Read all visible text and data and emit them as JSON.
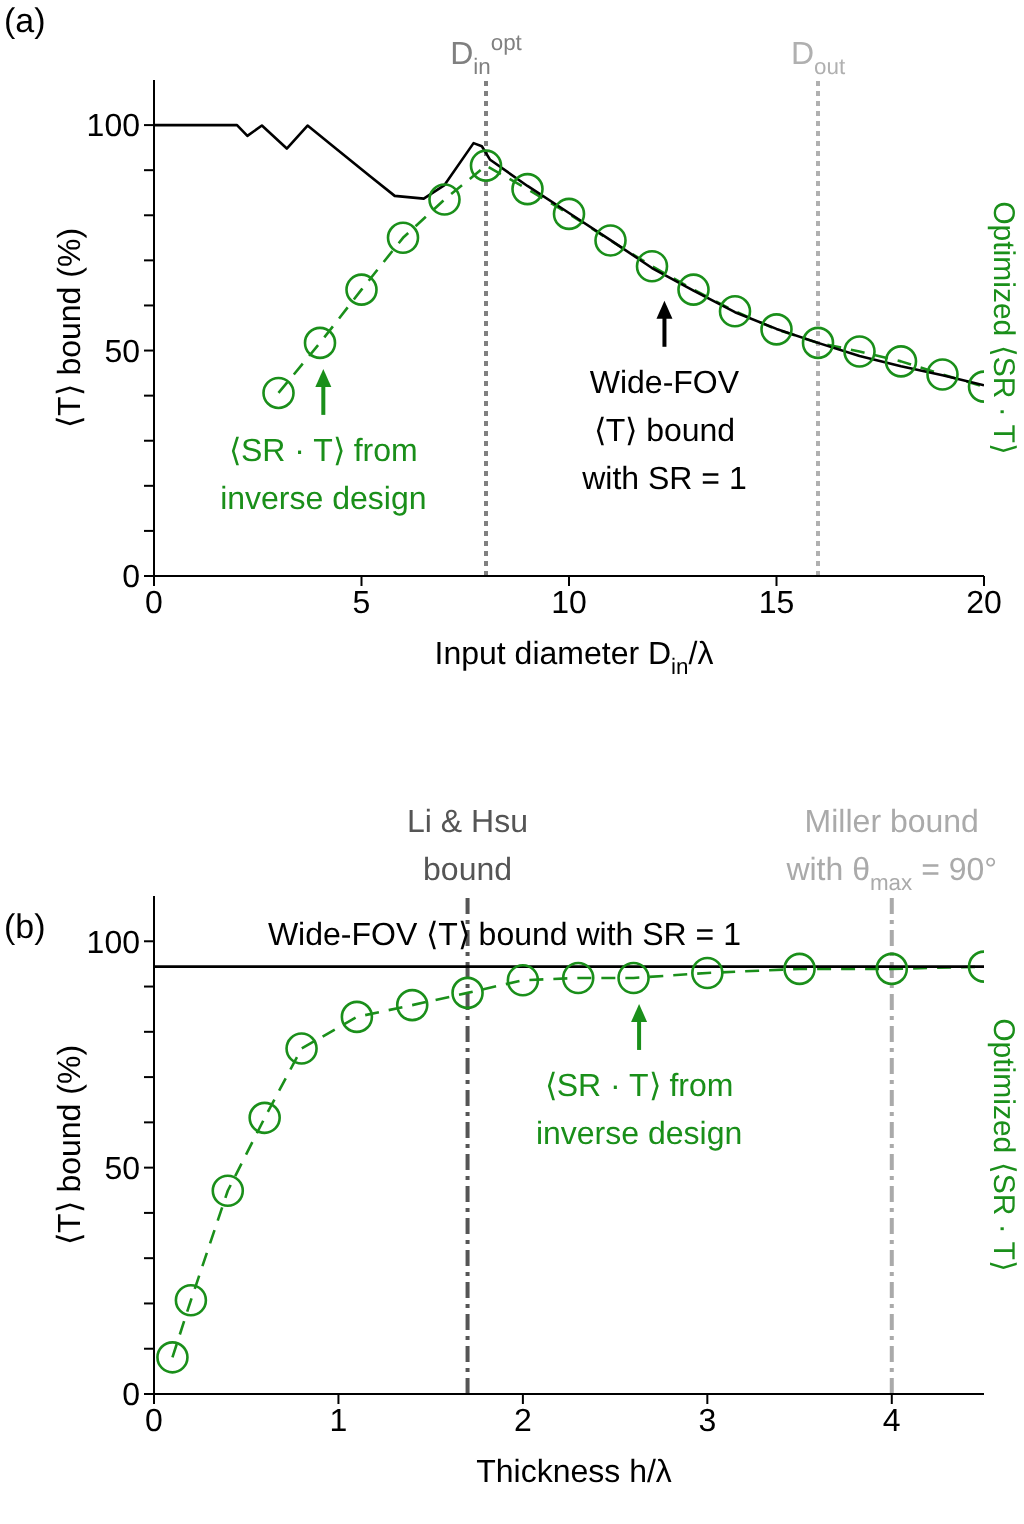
{
  "chart_data": [
    {
      "type": "line",
      "title": "(a)",
      "xlabel": "Input diameter D$_{in}$/λ",
      "ylabel": "⟨T⟩ bound (%)",
      "y2label": "Optimized ⟨SR · T⟩",
      "xlim": [
        0,
        20
      ],
      "xticks": [
        0,
        5,
        10,
        15,
        20
      ],
      "ylim": [
        0,
        110
      ],
      "yticks": [
        0,
        {
          "value": 10,
          "label": null
        },
        {
          "value": 20,
          "label": null
        },
        {
          "value": 30,
          "label": null
        },
        {
          "value": 40,
          "label": null
        },
        50,
        {
          "value": 60,
          "label": null
        },
        {
          "value": 70,
          "label": null
        },
        {
          "value": 80,
          "label": null
        },
        {
          "value": 90,
          "label": null
        },
        100
      ],
      "series": [
        {
          "type": "line",
          "color": "#1a8f1a",
          "marker": "circle",
          "line_style": "dashed",
          "x": [
            3,
            4,
            5,
            6,
            7,
            8,
            9,
            10,
            11,
            12,
            13,
            14,
            15,
            16,
            17,
            18,
            19,
            20
          ],
          "values": [
            40.6,
            51.7,
            63.5,
            75,
            83.5,
            91,
            85.8,
            80.3,
            74.4,
            68.7,
            63.5,
            58.7,
            54.7,
            51.7,
            49.8,
            47.6,
            44.7,
            42
          ]
        },
        {
          "type": "line",
          "color": "#000000",
          "marker": "none",
          "line_style": "solid",
          "x": [
            0,
            2,
            2.25,
            2.6,
            3.2,
            3.7,
            4.3,
            5.2,
            5.8,
            6.5,
            7,
            7.7,
            7.9,
            8.1,
            9,
            10,
            11,
            12,
            12.3,
            13,
            14,
            15,
            16,
            17,
            18,
            19,
            20
          ],
          "values": [
            100,
            100,
            97.6,
            99.9,
            94.8,
            99.9,
            95.4,
            88.7,
            84.3,
            83.7,
            86.7,
            96,
            95.3,
            92.3,
            86.5,
            80.5,
            74.5,
            68.3,
            66.8,
            63.3,
            58.5,
            54.8,
            51.7,
            48.8,
            46.5,
            44.5,
            42.3
          ]
        }
      ],
      "ref_lines": [
        {
          "axis": "x",
          "value": 8,
          "label": "D$_{in}$$^{opt}$",
          "color": "#808080",
          "line_style": "dotted"
        },
        {
          "axis": "x",
          "value": 16,
          "label": "D$_{out}$",
          "color": "#b0b0b0",
          "line_style": "dotted"
        }
      ],
      "annotations": [
        {
          "text": "⟨SR · T⟩ from\ninverse design",
          "x": 4.08,
          "y": 51.7
        },
        {
          "text": "Wide-FOV\n⟨T⟩ bound\nwith SR = 1",
          "x": 12.3,
          "y": 66.8
        }
      ]
    },
    {
      "type": "line",
      "title": "(b)",
      "xlabel": "Thickness h/λ",
      "ylabel": "⟨T⟩ bound (%)",
      "y2label": "Optimized ⟨SR · T⟩",
      "xlim": [
        0,
        4.5
      ],
      "xticks": [
        0,
        1,
        2,
        3,
        4
      ],
      "ylim": [
        0,
        110
      ],
      "yticks": [
        0,
        {
          "value": 10,
          "label": null
        },
        {
          "value": 20,
          "label": null
        },
        {
          "value": 30,
          "label": null
        },
        {
          "value": 40,
          "label": null
        },
        50,
        {
          "value": 60,
          "label": null
        },
        {
          "value": 70,
          "label": null
        },
        {
          "value": 80,
          "label": null
        },
        {
          "value": 90,
          "label": null
        },
        100
      ],
      "series": [
        {
          "type": "line",
          "color": "#1a8f1a",
          "marker": "circle",
          "line_style": "dashed",
          "x": [
            0.1,
            0.2,
            0.4,
            0.6,
            0.8,
            1.1,
            1.4,
            1.7,
            2,
            2.3,
            2.6,
            3,
            3.5,
            4,
            4.5
          ],
          "values": [
            8.1,
            20.7,
            44.9,
            61,
            76.3,
            83.3,
            85.9,
            88.6,
            91.4,
            91.9,
            91.9,
            93,
            93.9,
            93.9,
            94.4
          ]
        },
        {
          "type": "line",
          "color": "#000000",
          "marker": "none",
          "line_style": "solid",
          "x": [
            0,
            4.5
          ],
          "values": [
            94.4,
            94.4
          ]
        }
      ],
      "ref_lines": [
        {
          "axis": "x",
          "value": 1.7,
          "label": "Li & Hsu\nbound",
          "color": "#555555",
          "line_style": "dashed"
        },
        {
          "axis": "x",
          "value": 4,
          "color": "#aaaaaa",
          "line_style": "dashed"
        }
      ],
      "annotations": [
        {
          "text": "Miller bound\nwith θ$_{max}$ = 90°",
          "x": 4,
          "y": 110
        },
        {
          "text": "Wide-FOV ⟨T⟩ bound with SR = 1",
          "x": 1.9,
          "y": 94.4
        },
        {
          "text": "⟨SR · T⟩ from\ninverse design",
          "x": 2.63,
          "y": 91.9
        }
      ]
    }
  ]
}
